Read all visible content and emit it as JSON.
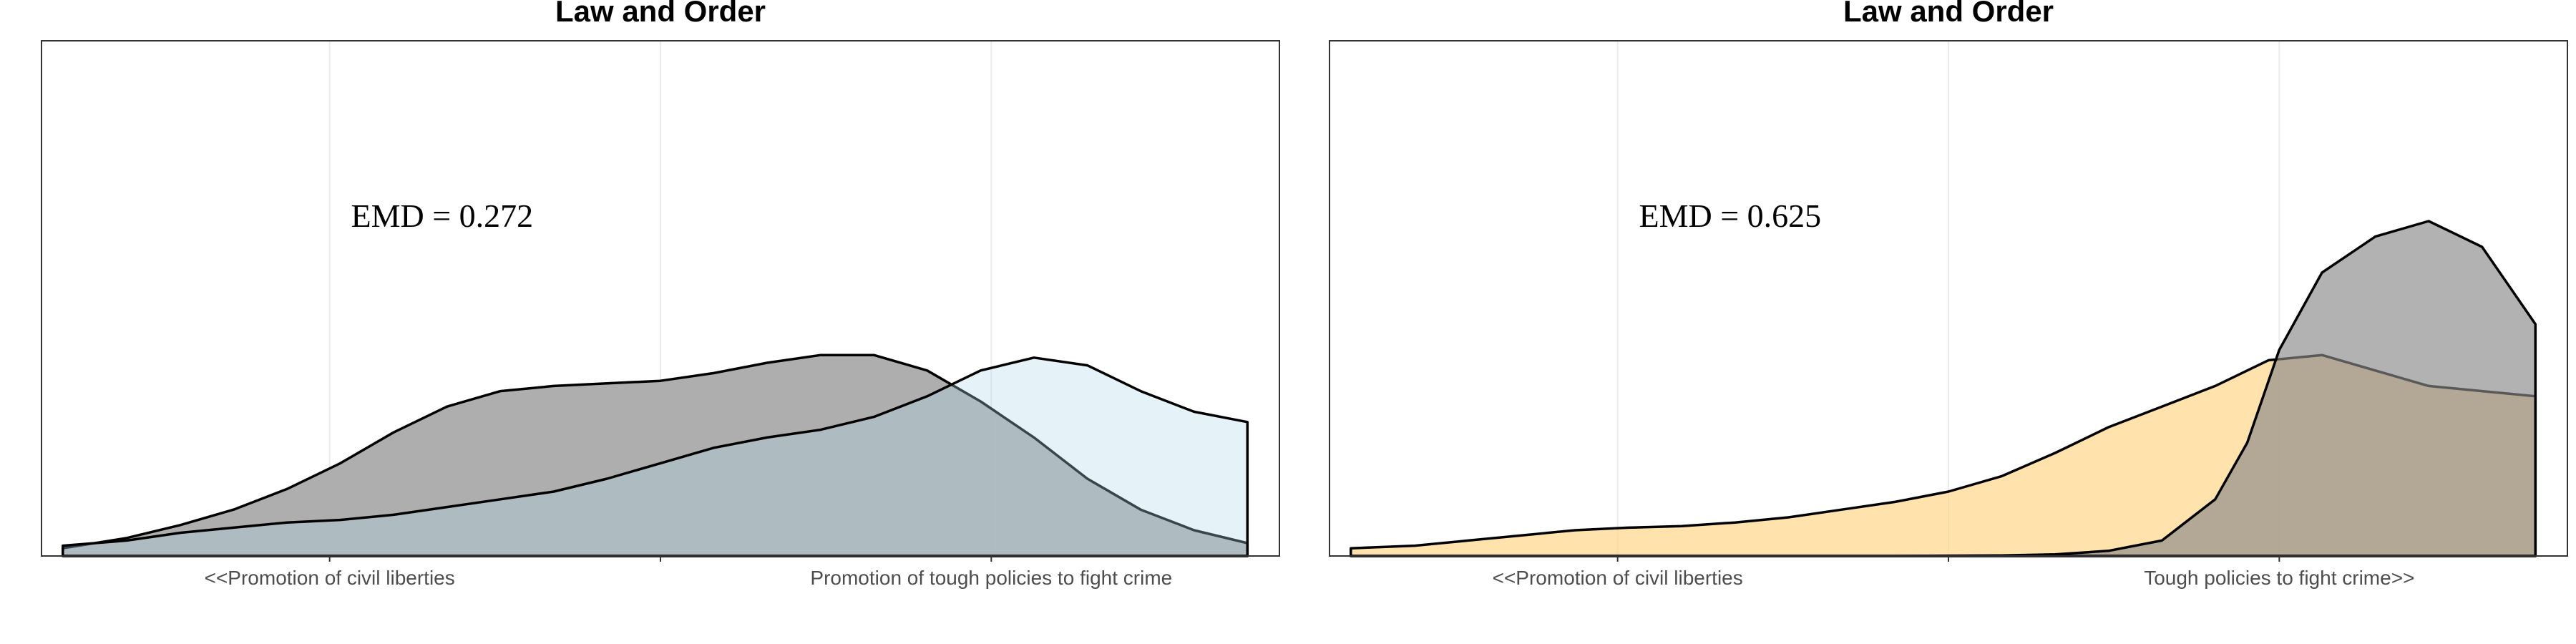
{
  "chart_data": [
    {
      "type": "area",
      "title": "Law and Order",
      "annotation": "EMD = 0.272",
      "xlabel": "",
      "ylabel": "",
      "xlim": [
        -0.13,
        1.03
      ],
      "ylim": [
        0,
        1.0
      ],
      "x_ticks": [
        {
          "value": 0.14,
          "label": "<<Promotion of civil liberties"
        },
        {
          "value": 0.45,
          "label": ""
        },
        {
          "value": 0.76,
          "label": "Promotion of tough policies to fight crime"
        }
      ],
      "grid": true,
      "legend": "none",
      "series": [
        {
          "fill": "#aaaaaa",
          "opacity": 0.95,
          "x": [
            -0.11,
            -0.05,
            0.0,
            0.05,
            0.1,
            0.15,
            0.2,
            0.25,
            0.3,
            0.35,
            0.4,
            0.45,
            0.5,
            0.55,
            0.6,
            0.65,
            0.7,
            0.75,
            0.8,
            0.85,
            0.9,
            0.95,
            1.0
          ],
          "y": [
            0.015,
            0.035,
            0.06,
            0.09,
            0.13,
            0.18,
            0.24,
            0.29,
            0.32,
            0.33,
            0.335,
            0.34,
            0.355,
            0.375,
            0.39,
            0.39,
            0.36,
            0.3,
            0.23,
            0.15,
            0.09,
            0.05,
            0.025
          ]
        },
        {
          "fill": "#add8e6",
          "opacity": 0.32,
          "x": [
            -0.11,
            -0.05,
            0.0,
            0.05,
            0.1,
            0.15,
            0.2,
            0.25,
            0.3,
            0.35,
            0.4,
            0.45,
            0.5,
            0.55,
            0.6,
            0.65,
            0.7,
            0.75,
            0.8,
            0.85,
            0.9,
            0.95,
            1.0
          ],
          "y": [
            0.02,
            0.03,
            0.045,
            0.055,
            0.065,
            0.07,
            0.08,
            0.095,
            0.11,
            0.125,
            0.15,
            0.18,
            0.21,
            0.23,
            0.245,
            0.27,
            0.31,
            0.36,
            0.385,
            0.37,
            0.32,
            0.28,
            0.26
          ]
        }
      ]
    },
    {
      "type": "area",
      "title": "Law and Order",
      "annotation": "EMD = 0.625",
      "xlabel": "",
      "ylabel": "",
      "xlim": [
        -0.13,
        1.03
      ],
      "ylim": [
        0,
        1.0
      ],
      "x_ticks": [
        {
          "value": 0.14,
          "label": "<<Promotion of civil liberties"
        },
        {
          "value": 0.45,
          "label": ""
        },
        {
          "value": 0.76,
          "label": "Tough policies to fight crime>>"
        }
      ],
      "grid": true,
      "legend": "none",
      "series": [
        {
          "fill": "#ffd27f",
          "opacity": 0.65,
          "x": [
            -0.11,
            -0.05,
            0.0,
            0.05,
            0.1,
            0.15,
            0.2,
            0.25,
            0.3,
            0.35,
            0.4,
            0.45,
            0.5,
            0.55,
            0.6,
            0.65,
            0.7,
            0.75,
            0.8,
            0.85,
            0.9,
            0.95,
            1.0
          ],
          "y": [
            0.015,
            0.02,
            0.03,
            0.04,
            0.05,
            0.055,
            0.058,
            0.065,
            0.075,
            0.09,
            0.105,
            0.125,
            0.155,
            0.2,
            0.25,
            0.29,
            0.33,
            0.38,
            0.39,
            0.36,
            0.33,
            0.32,
            0.31
          ]
        },
        {
          "fill": "#888888",
          "opacity": 0.65,
          "x": [
            -0.11,
            0.0,
            0.1,
            0.2,
            0.3,
            0.4,
            0.5,
            0.55,
            0.6,
            0.65,
            0.7,
            0.73,
            0.76,
            0.8,
            0.85,
            0.9,
            0.95,
            1.0
          ],
          "y": [
            0.0,
            0.0,
            0.0,
            0.0,
            0.0,
            0.0,
            0.001,
            0.003,
            0.01,
            0.03,
            0.11,
            0.22,
            0.4,
            0.55,
            0.62,
            0.65,
            0.6,
            0.45
          ]
        }
      ]
    }
  ]
}
